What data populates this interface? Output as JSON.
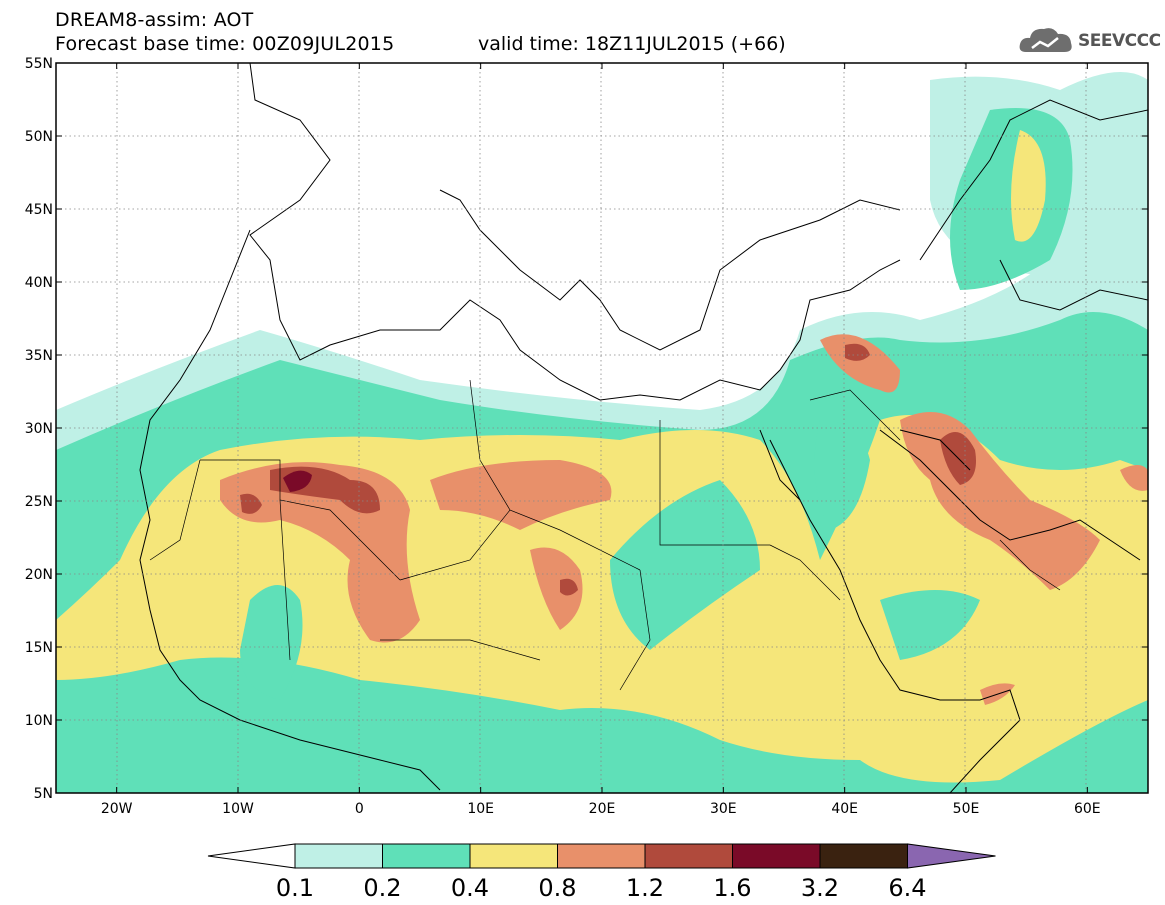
{
  "header": {
    "title": "DREAM8-assim: AOT",
    "base_time": "Forecast base time: 00Z09JUL2015",
    "valid_time": "valid time: 18Z11JUL2015 (+66)"
  },
  "logo": {
    "text": "SEEVCCC",
    "icon": "cloud-icon"
  },
  "map": {
    "lat_labels": [
      "55N",
      "50N",
      "45N",
      "40N",
      "35N",
      "30N",
      "25N",
      "20N",
      "15N",
      "10N",
      "5N"
    ],
    "lon_labels": [
      "20W",
      "10W",
      "0",
      "10E",
      "20E",
      "30E",
      "40E",
      "50E",
      "60E"
    ],
    "lon_range": [
      -25,
      65
    ],
    "lat_range": [
      5,
      55
    ]
  },
  "colorbar": {
    "labels": [
      "0.1",
      "0.2",
      "0.4",
      "0.8",
      "1.2",
      "1.6",
      "3.2",
      "6.4"
    ],
    "colors": [
      "#ffffff",
      "#bff0e6",
      "#5fe0b8",
      "#f5e67a",
      "#e8906a",
      "#b04a3c",
      "#7a0a28",
      "#3a2210",
      "#8a66b0"
    ]
  }
}
